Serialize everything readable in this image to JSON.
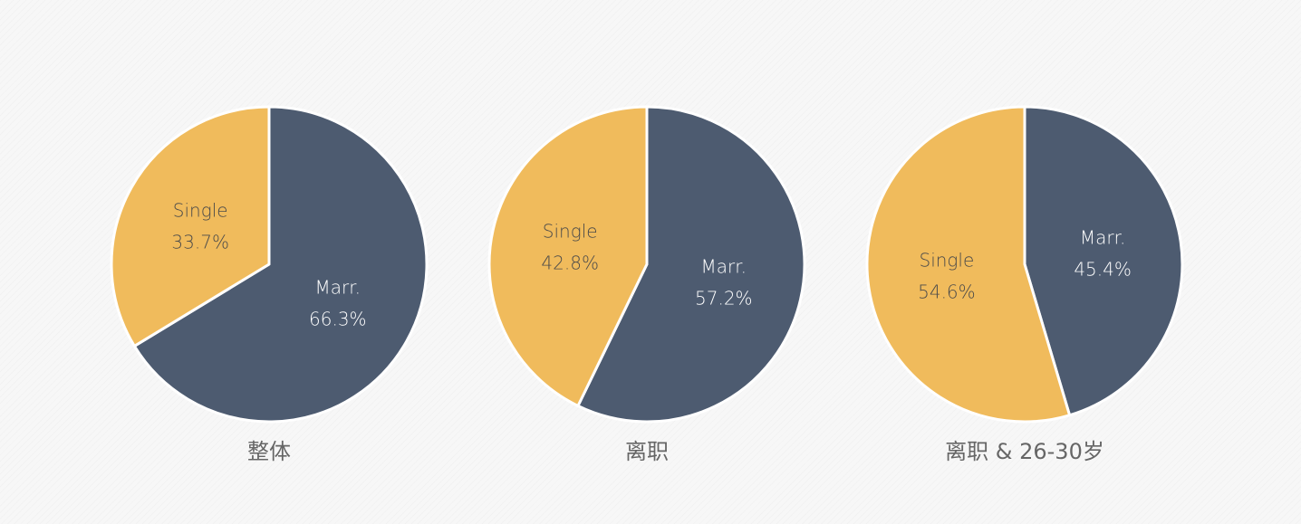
{
  "chart_data": [
    {
      "type": "pie",
      "title": "整体",
      "series": [
        {
          "name": "Single",
          "label": "Single",
          "value_label": "33.7%",
          "value": 33.7,
          "color": "#f0bb5c"
        },
        {
          "name": "Marr.",
          "label": "Marr.",
          "value_label": "66.3%",
          "value": 66.3,
          "color": "#4d5b70"
        }
      ]
    },
    {
      "type": "pie",
      "title": "离职",
      "series": [
        {
          "name": "Single",
          "label": "Single",
          "value_label": "42.8%",
          "value": 42.8,
          "color": "#f0bb5c"
        },
        {
          "name": "Marr.",
          "label": "Marr.",
          "value_label": "57.2%",
          "value": 57.2,
          "color": "#4d5b70"
        }
      ]
    },
    {
      "type": "pie",
      "title": "离职 & 26-30岁",
      "series": [
        {
          "name": "Single",
          "label": "Single",
          "value_label": "54.6%",
          "value": 54.6,
          "color": "#f0bb5c"
        },
        {
          "name": "Marr.",
          "label": "Marr.",
          "value_label": "45.4%",
          "value": 45.4,
          "color": "#4d5b70"
        }
      ]
    }
  ]
}
